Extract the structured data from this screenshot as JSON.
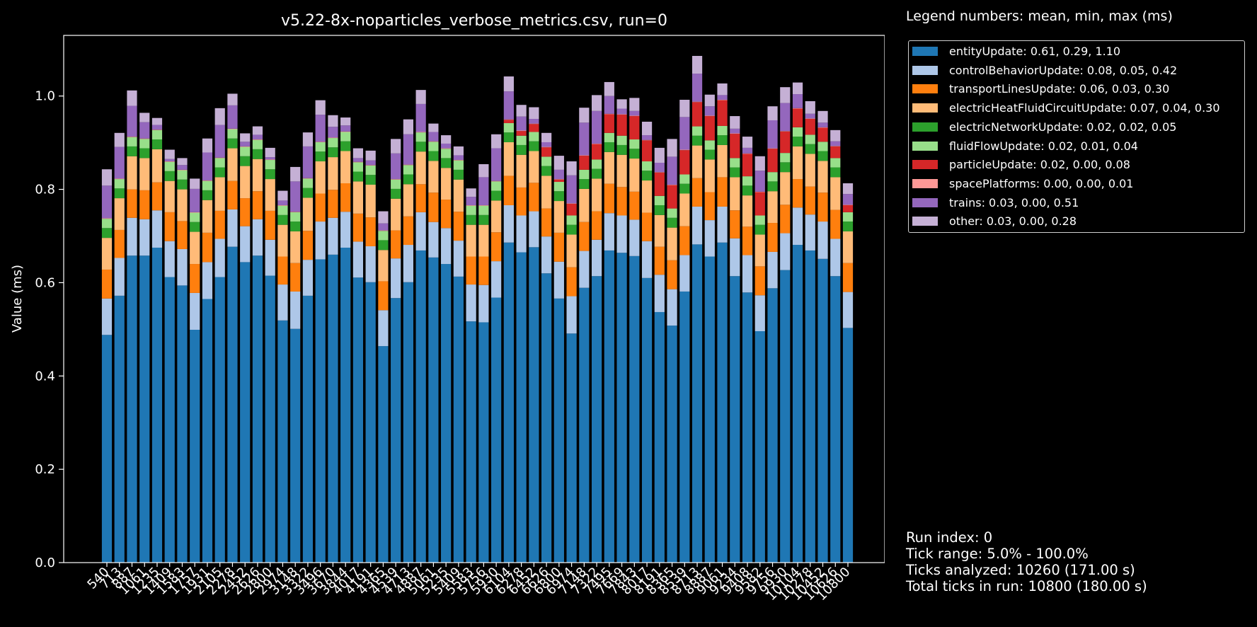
{
  "chart_data": {
    "type": "bar",
    "stacked": true,
    "title": "v5.22-8x-noparticles_verbose_metrics.csv, run=0",
    "xlabel": "",
    "ylabel": "Value (ms)",
    "ylim": [
      0,
      1.13
    ],
    "yticks": [
      "0.0",
      "0.2",
      "0.4",
      "0.6",
      "0.8",
      "1.0"
    ],
    "grid": false,
    "legend_position": "outside-top-right",
    "categories": [
      "540",
      "713",
      "887",
      "1061",
      "1235",
      "1409",
      "1583",
      "1757",
      "1931",
      "2105",
      "2278",
      "2452",
      "2626",
      "2800",
      "2974",
      "3148",
      "3322",
      "3496",
      "3670",
      "3844",
      "4017",
      "4191",
      "4365",
      "4539",
      "4713",
      "4887",
      "5061",
      "5235",
      "5409",
      "5583",
      "5756",
      "5930",
      "6104",
      "6278",
      "6452",
      "6626",
      "6800",
      "6974",
      "7148",
      "7322",
      "7495",
      "7669",
      "7843",
      "8017",
      "8191",
      "8365",
      "8539",
      "8713",
      "8887",
      "9061",
      "9234",
      "9408",
      "9582",
      "9756",
      "9930",
      "10104",
      "10278",
      "10452",
      "10626",
      "10800"
    ],
    "series": [
      {
        "name": "entityUpdate",
        "color": "#1f77b4",
        "values": [
          0.488,
          0.572,
          0.658,
          0.658,
          0.675,
          0.612,
          0.594,
          0.499,
          0.565,
          0.612,
          0.677,
          0.644,
          0.658,
          0.615,
          0.519,
          0.501,
          0.572,
          0.65,
          0.66,
          0.675,
          0.611,
          0.601,
          0.464,
          0.567,
          0.601,
          0.669,
          0.654,
          0.64,
          0.613,
          0.517,
          0.515,
          0.568,
          0.686,
          0.665,
          0.676,
          0.62,
          0.566,
          0.491,
          0.589,
          0.614,
          0.669,
          0.664,
          0.657,
          0.61,
          0.537,
          0.508,
          0.581,
          0.682,
          0.656,
          0.686,
          0.614,
          0.579,
          0.496,
          0.588,
          0.627,
          0.681,
          0.669,
          0.651,
          0.614,
          0.503
        ]
      },
      {
        "name": "controlBehaviorUpdate",
        "color": "#aec7e8",
        "values": [
          0.078,
          0.081,
          0.081,
          0.078,
          0.08,
          0.077,
          0.078,
          0.079,
          0.079,
          0.082,
          0.08,
          0.077,
          0.078,
          0.077,
          0.077,
          0.08,
          0.077,
          0.081,
          0.079,
          0.077,
          0.077,
          0.077,
          0.077,
          0.085,
          0.08,
          0.082,
          0.076,
          0.077,
          0.077,
          0.079,
          0.08,
          0.078,
          0.08,
          0.079,
          0.077,
          0.079,
          0.079,
          0.08,
          0.079,
          0.078,
          0.08,
          0.08,
          0.078,
          0.079,
          0.08,
          0.078,
          0.078,
          0.081,
          0.078,
          0.077,
          0.081,
          0.08,
          0.077,
          0.078,
          0.079,
          0.08,
          0.077,
          0.08,
          0.08,
          0.077
        ]
      },
      {
        "name": "transportLinesUpdate",
        "color": "#ff7f0e",
        "values": [
          0.062,
          0.06,
          0.061,
          0.062,
          0.06,
          0.062,
          0.06,
          0.062,
          0.063,
          0.06,
          0.061,
          0.06,
          0.06,
          0.062,
          0.06,
          0.061,
          0.062,
          0.06,
          0.06,
          0.061,
          0.06,
          0.062,
          0.062,
          0.06,
          0.061,
          0.06,
          0.063,
          0.061,
          0.062,
          0.06,
          0.061,
          0.062,
          0.063,
          0.06,
          0.061,
          0.06,
          0.062,
          0.062,
          0.062,
          0.061,
          0.063,
          0.061,
          0.06,
          0.061,
          0.06,
          0.062,
          0.062,
          0.061,
          0.06,
          0.063,
          0.06,
          0.061,
          0.062,
          0.062,
          0.061,
          0.061,
          0.06,
          0.062,
          0.062,
          0.062
        ]
      },
      {
        "name": "electricHeatFluidCircuitUpdate",
        "color": "#ffbb78",
        "values": [
          0.068,
          0.068,
          0.071,
          0.069,
          0.071,
          0.067,
          0.068,
          0.069,
          0.07,
          0.072,
          0.07,
          0.069,
          0.069,
          0.068,
          0.068,
          0.068,
          0.071,
          0.069,
          0.07,
          0.069,
          0.069,
          0.07,
          0.067,
          0.068,
          0.069,
          0.07,
          0.068,
          0.068,
          0.069,
          0.068,
          0.068,
          0.068,
          0.072,
          0.07,
          0.068,
          0.07,
          0.068,
          0.07,
          0.071,
          0.07,
          0.068,
          0.069,
          0.071,
          0.069,
          0.068,
          0.07,
          0.07,
          0.07,
          0.07,
          0.069,
          0.071,
          0.067,
          0.068,
          0.068,
          0.07,
          0.07,
          0.07,
          0.068,
          0.07,
          0.068
        ]
      },
      {
        "name": "electricNetworkUpdate",
        "color": "#2ca02c",
        "values": [
          0.021,
          0.021,
          0.021,
          0.021,
          0.021,
          0.021,
          0.021,
          0.021,
          0.021,
          0.021,
          0.021,
          0.021,
          0.021,
          0.021,
          0.021,
          0.021,
          0.021,
          0.021,
          0.021,
          0.021,
          0.021,
          0.021,
          0.021,
          0.021,
          0.021,
          0.021,
          0.021,
          0.021,
          0.021,
          0.021,
          0.021,
          0.021,
          0.021,
          0.021,
          0.021,
          0.021,
          0.021,
          0.021,
          0.021,
          0.021,
          0.021,
          0.021,
          0.021,
          0.021,
          0.021,
          0.021,
          0.021,
          0.021,
          0.021,
          0.021,
          0.021,
          0.021,
          0.021,
          0.021,
          0.021,
          0.021,
          0.021,
          0.021,
          0.021,
          0.021
        ]
      },
      {
        "name": "fluidFlowUpdate",
        "color": "#98df8a",
        "values": [
          0.02,
          0.02,
          0.02,
          0.02,
          0.02,
          0.02,
          0.02,
          0.02,
          0.02,
          0.02,
          0.02,
          0.02,
          0.02,
          0.02,
          0.02,
          0.02,
          0.02,
          0.02,
          0.02,
          0.02,
          0.02,
          0.02,
          0.02,
          0.02,
          0.02,
          0.02,
          0.02,
          0.02,
          0.02,
          0.02,
          0.02,
          0.02,
          0.02,
          0.02,
          0.02,
          0.02,
          0.02,
          0.02,
          0.02,
          0.02,
          0.02,
          0.02,
          0.02,
          0.02,
          0.02,
          0.02,
          0.02,
          0.02,
          0.02,
          0.02,
          0.02,
          0.02,
          0.02,
          0.02,
          0.02,
          0.02,
          0.02,
          0.02,
          0.02,
          0.02
        ]
      },
      {
        "name": "particleUpdate",
        "color": "#d62728",
        "values": [
          0,
          0,
          0,
          0,
          0,
          0,
          0,
          0,
          0,
          0,
          0,
          0,
          0,
          0,
          0,
          0,
          0,
          0,
          0,
          0,
          0,
          0,
          0,
          0,
          0,
          0,
          0,
          0,
          0,
          0,
          0,
          0,
          0.007,
          0.01,
          0.017,
          0.02,
          0.005,
          0.025,
          0.03,
          0.033,
          0.04,
          0.045,
          0.05,
          0.045,
          0.05,
          0.05,
          0.052,
          0.052,
          0.052,
          0.055,
          0.052,
          0.048,
          0.05,
          0.05,
          0.046,
          0.04,
          0.034,
          0.03,
          0.025,
          0.015
        ]
      },
      {
        "name": "spacePlatforms",
        "color": "#ff9896",
        "values": [
          0.001,
          0.001,
          0.001,
          0.001,
          0.001,
          0.001,
          0.001,
          0.001,
          0.001,
          0.001,
          0.001,
          0.001,
          0.001,
          0.001,
          0.001,
          0.001,
          0.001,
          0.001,
          0.001,
          0.001,
          0.001,
          0.001,
          0.001,
          0.001,
          0.001,
          0.001,
          0.001,
          0.001,
          0.001,
          0.001,
          0.001,
          0.001,
          0.001,
          0.001,
          0.001,
          0.001,
          0.001,
          0.001,
          0.001,
          0.001,
          0.001,
          0.001,
          0.001,
          0.001,
          0.001,
          0.001,
          0.001,
          0.001,
          0.001,
          0.001,
          0.001,
          0.001,
          0.001,
          0.001,
          0.001,
          0.001,
          0.001,
          0.001,
          0.001,
          0.001
        ]
      },
      {
        "name": "trains",
        "color": "#9467bd",
        "values": [
          0.07,
          0.068,
          0.066,
          0.035,
          0.01,
          0.005,
          0.01,
          0.05,
          0.06,
          0.07,
          0.05,
          0.01,
          0.01,
          0.005,
          0.01,
          0.065,
          0.068,
          0.058,
          0.023,
          0.013,
          0.008,
          0.01,
          0.015,
          0.055,
          0.065,
          0.06,
          0.02,
          0.01,
          0.01,
          0.018,
          0.06,
          0.07,
          0.06,
          0.03,
          0.01,
          0.01,
          0.02,
          0.06,
          0.07,
          0.07,
          0.038,
          0.012,
          0.01,
          0.01,
          0.02,
          0.06,
          0.07,
          0.06,
          0.02,
          0.01,
          0.01,
          0.012,
          0.045,
          0.06,
          0.06,
          0.03,
          0.01,
          0.01,
          0.01,
          0.023
        ]
      },
      {
        "name": "other",
        "color": "#c5b0d5",
        "values": [
          0.035,
          0.03,
          0.033,
          0.02,
          0.015,
          0.02,
          0.015,
          0.022,
          0.03,
          0.036,
          0.025,
          0.018,
          0.018,
          0.02,
          0.021,
          0.031,
          0.03,
          0.031,
          0.025,
          0.017,
          0.021,
          0.021,
          0.026,
          0.031,
          0.032,
          0.03,
          0.018,
          0.018,
          0.019,
          0.018,
          0.028,
          0.03,
          0.032,
          0.025,
          0.025,
          0.02,
          0.03,
          0.03,
          0.032,
          0.034,
          0.03,
          0.02,
          0.028,
          0.029,
          0.032,
          0.038,
          0.037,
          0.038,
          0.025,
          0.025,
          0.027,
          0.024,
          0.031,
          0.03,
          0.034,
          0.025,
          0.027,
          0.025,
          0.024,
          0.023
        ]
      }
    ]
  },
  "legend": {
    "title": "Legend numbers: mean, min, max (ms)",
    "entries": [
      "entityUpdate: 0.61, 0.29, 1.10",
      "controlBehaviorUpdate: 0.08, 0.05, 0.42",
      "transportLinesUpdate: 0.06, 0.03, 0.30",
      "electricHeatFluidCircuitUpdate: 0.07, 0.04, 0.30",
      "electricNetworkUpdate: 0.02, 0.02, 0.05",
      "fluidFlowUpdate: 0.02, 0.01, 0.04",
      "particleUpdate: 0.02, 0.00, 0.08",
      "spacePlatforms: 0.00, 0.00, 0.01",
      "trains: 0.03, 0.00, 0.51",
      "other: 0.03, 0.00, 0.28"
    ]
  },
  "info": {
    "run_index": "Run index: 0",
    "tick_range": "Tick range: 5.0% - 100.0%",
    "ticks_analyzed": "Ticks analyzed: 10260 (171.00 s)",
    "total_ticks": "Total ticks in run: 10800 (180.00 s)"
  }
}
